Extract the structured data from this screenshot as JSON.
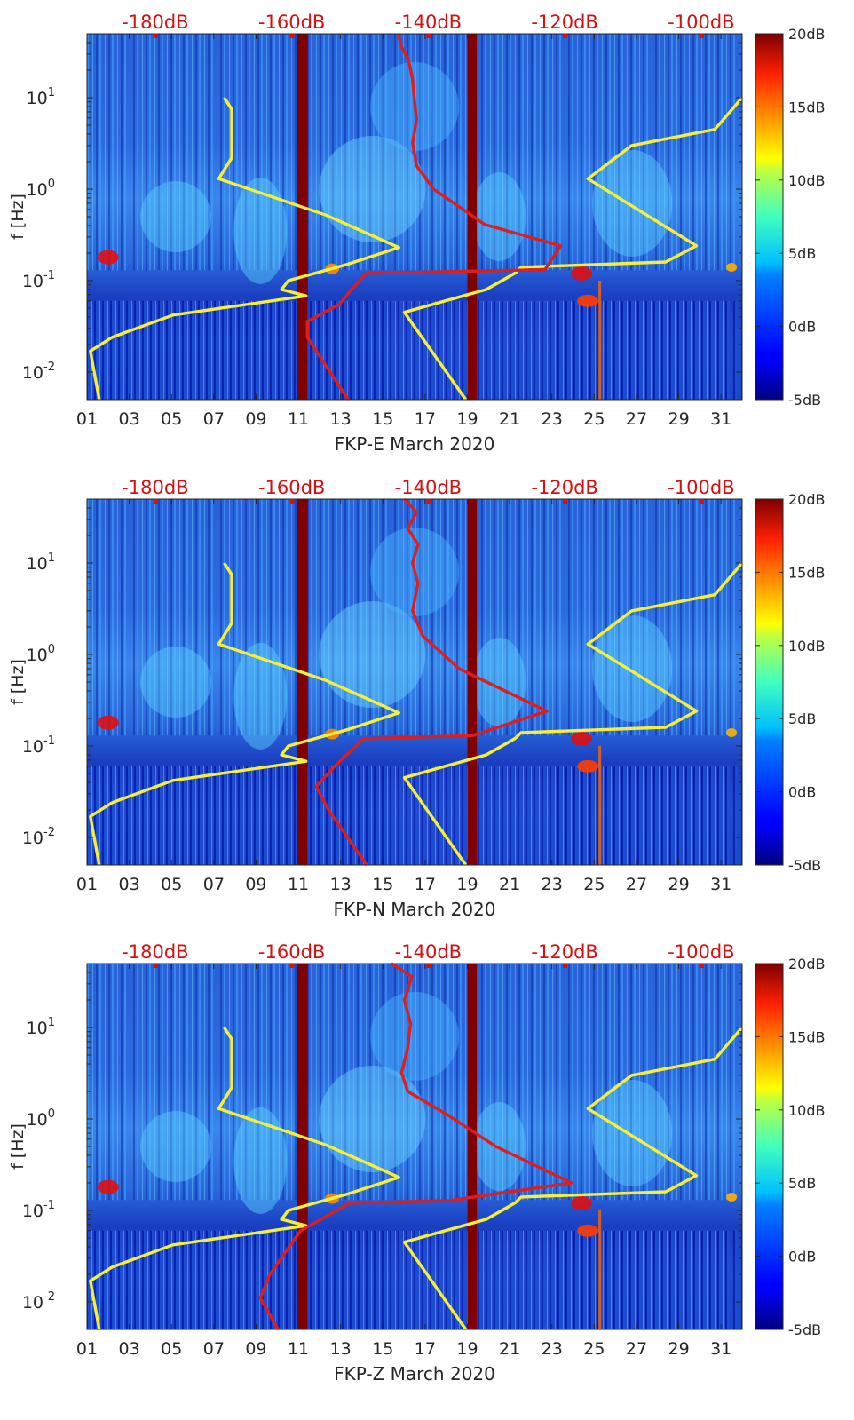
{
  "chart_data": [
    {
      "type": "heatmap",
      "xlabel": "FKP-E March 2020",
      "ylabel": "f [Hz]",
      "x_ticks": [
        "01",
        "03",
        "05",
        "07",
        "09",
        "11",
        "13",
        "15",
        "17",
        "19",
        "21",
        "23",
        "25",
        "27",
        "29",
        "31"
      ],
      "y_ticks": [
        {
          "base": "10",
          "exp": "-2"
        },
        {
          "base": "10",
          "exp": "-1"
        },
        {
          "base": "10",
          "exp": "0"
        },
        {
          "base": "10",
          "exp": "1"
        }
      ],
      "y_scale": "log",
      "ylim": [
        0.005,
        50
      ],
      "xlim": [
        1,
        32
      ],
      "top_axis_labels": [
        "-180dB",
        "-160dB",
        "-140dB",
        "-120dB",
        "-100dB"
      ],
      "top_axis_range_db": [
        -190,
        -94
      ],
      "colorbar": {
        "ticks": [
          "20dB",
          "15dB",
          "10dB",
          "5dB",
          "0dB",
          "-5dB"
        ],
        "range": [
          -5,
          20
        ],
        "colormap": "jet"
      },
      "series": [
        {
          "color": "#f5ef3a",
          "axis": "top",
          "points": [
            [
              -169.9,
              10
            ],
            [
              -168.8,
              7.5
            ],
            [
              -168.8,
              2.2
            ],
            [
              -170.7,
              1.3
            ],
            [
              -155,
              0.52
            ],
            [
              -144.3,
              0.23
            ],
            [
              -151.7,
              0.152
            ],
            [
              -160.5,
              0.1
            ],
            [
              -161.5,
              0.08
            ],
            [
              -157.9,
              0.068
            ],
            [
              -177.4,
              0.042
            ],
            [
              -186.3,
              0.024
            ],
            [
              -189.5,
              0.017
            ],
            [
              -188.2,
              0.005
            ]
          ]
        },
        {
          "color": "#f5ef3a",
          "axis": "top",
          "points": [
            [
              -94,
              10
            ],
            [
              -98,
              4.5
            ],
            [
              -110.2,
              3.0
            ],
            [
              -116.6,
              1.3
            ],
            [
              -100.7,
              0.24
            ],
            [
              -105.2,
              0.16
            ],
            [
              -126.4,
              0.14
            ],
            [
              -127.2,
              0.122
            ],
            [
              -128.5,
              0.107
            ],
            [
              -131.5,
              0.08
            ],
            [
              -136.5,
              0.063
            ],
            [
              -143.5,
              0.045
            ],
            [
              -134.5,
              0.005
            ]
          ]
        },
        {
          "color": "#dc1e1e",
          "axis": "top",
          "points": [
            [
              -144.4,
              50
            ],
            [
              -143.9,
              36
            ],
            [
              -142.9,
              26
            ],
            [
              -142.3,
              16
            ],
            [
              -142.0,
              9
            ],
            [
              -141.7,
              5.8
            ],
            [
              -142.3,
              3.2
            ],
            [
              -141.7,
              1.8
            ],
            [
              -139.2,
              1.0
            ],
            [
              -131.7,
              0.41
            ],
            [
              -120.6,
              0.24
            ],
            [
              -122.9,
              0.132
            ],
            [
              -149.1,
              0.12
            ],
            [
              -151.5,
              0.076
            ],
            [
              -153.0,
              0.055
            ],
            [
              -157.7,
              0.036
            ],
            [
              -157.7,
              0.024
            ],
            [
              -151.7,
              0.005
            ]
          ]
        }
      ]
    },
    {
      "type": "heatmap",
      "xlabel": "FKP-N March 2020",
      "ylabel": "f [Hz]",
      "x_ticks": [
        "01",
        "03",
        "05",
        "07",
        "09",
        "11",
        "13",
        "15",
        "17",
        "19",
        "21",
        "23",
        "25",
        "27",
        "29",
        "31"
      ],
      "y_ticks": [
        {
          "base": "10",
          "exp": "-2"
        },
        {
          "base": "10",
          "exp": "-1"
        },
        {
          "base": "10",
          "exp": "0"
        },
        {
          "base": "10",
          "exp": "1"
        }
      ],
      "y_scale": "log",
      "ylim": [
        0.005,
        50
      ],
      "xlim": [
        1,
        32
      ],
      "top_axis_labels": [
        "-180dB",
        "-160dB",
        "-140dB",
        "-120dB",
        "-100dB"
      ],
      "top_axis_range_db": [
        -190,
        -94
      ],
      "colorbar": {
        "ticks": [
          "20dB",
          "15dB",
          "10dB",
          "5dB",
          "0dB",
          "-5dB"
        ],
        "range": [
          -5,
          20
        ],
        "colormap": "jet"
      },
      "series": [
        {
          "color": "#f5ef3a",
          "axis": "top",
          "points": [
            [
              -169.9,
              10
            ],
            [
              -168.8,
              7.5
            ],
            [
              -168.8,
              2.2
            ],
            [
              -170.7,
              1.3
            ],
            [
              -155,
              0.52
            ],
            [
              -144.3,
              0.23
            ],
            [
              -151.7,
              0.152
            ],
            [
              -160.5,
              0.1
            ],
            [
              -161.5,
              0.08
            ],
            [
              -157.9,
              0.068
            ],
            [
              -177.4,
              0.042
            ],
            [
              -186.3,
              0.024
            ],
            [
              -189.5,
              0.017
            ],
            [
              -188.2,
              0.005
            ]
          ]
        },
        {
          "color": "#f5ef3a",
          "axis": "top",
          "points": [
            [
              -94,
              10
            ],
            [
              -98,
              4.5
            ],
            [
              -110.2,
              3.0
            ],
            [
              -116.6,
              1.3
            ],
            [
              -100.7,
              0.24
            ],
            [
              -105.2,
              0.16
            ],
            [
              -126.4,
              0.14
            ],
            [
              -127.2,
              0.122
            ],
            [
              -128.5,
              0.107
            ],
            [
              -131.5,
              0.08
            ],
            [
              -136.5,
              0.063
            ],
            [
              -143.5,
              0.045
            ],
            [
              -134.5,
              0.005
            ]
          ]
        },
        {
          "color": "#dc1e1e",
          "axis": "top",
          "points": [
            [
              -143.5,
              50
            ],
            [
              -141.7,
              36
            ],
            [
              -143.0,
              24
            ],
            [
              -141.5,
              16
            ],
            [
              -142.3,
              10
            ],
            [
              -141.5,
              6.0
            ],
            [
              -142.3,
              3.0
            ],
            [
              -140.8,
              1.6
            ],
            [
              -135.5,
              0.7
            ],
            [
              -122.6,
              0.24
            ],
            [
              -133.5,
              0.13
            ],
            [
              -149.5,
              0.12
            ],
            [
              -153.7,
              0.06
            ],
            [
              -156.4,
              0.036
            ],
            [
              -154.6,
              0.02
            ],
            [
              -149.0,
              0.005
            ]
          ]
        }
      ]
    },
    {
      "type": "heatmap",
      "xlabel": "FKP-Z March 2020",
      "ylabel": "f [Hz]",
      "x_ticks": [
        "01",
        "03",
        "05",
        "07",
        "09",
        "11",
        "13",
        "15",
        "17",
        "19",
        "21",
        "23",
        "25",
        "27",
        "29",
        "31"
      ],
      "y_ticks": [
        {
          "base": "10",
          "exp": "-2"
        },
        {
          "base": "10",
          "exp": "-1"
        },
        {
          "base": "10",
          "exp": "0"
        },
        {
          "base": "10",
          "exp": "1"
        }
      ],
      "y_scale": "log",
      "ylim": [
        0.005,
        50
      ],
      "xlim": [
        1,
        32
      ],
      "top_axis_labels": [
        "-180dB",
        "-160dB",
        "-140dB",
        "-120dB",
        "-100dB"
      ],
      "top_axis_range_db": [
        -190,
        -94
      ],
      "colorbar": {
        "ticks": [
          "20dB",
          "15dB",
          "10dB",
          "5dB",
          "0dB",
          "-5dB"
        ],
        "range": [
          -5,
          20
        ],
        "colormap": "jet"
      },
      "series": [
        {
          "color": "#f5ef3a",
          "axis": "top",
          "points": [
            [
              -169.9,
              10
            ],
            [
              -168.8,
              7.5
            ],
            [
              -168.8,
              2.2
            ],
            [
              -170.7,
              1.3
            ],
            [
              -155,
              0.52
            ],
            [
              -144.3,
              0.23
            ],
            [
              -151.7,
              0.152
            ],
            [
              -160.5,
              0.1
            ],
            [
              -161.5,
              0.08
            ],
            [
              -157.9,
              0.068
            ],
            [
              -177.4,
              0.042
            ],
            [
              -186.3,
              0.024
            ],
            [
              -189.5,
              0.017
            ],
            [
              -188.2,
              0.005
            ]
          ]
        },
        {
          "color": "#f5ef3a",
          "axis": "top",
          "points": [
            [
              -94,
              10
            ],
            [
              -98,
              4.5
            ],
            [
              -110.2,
              3.0
            ],
            [
              -116.6,
              1.3
            ],
            [
              -100.7,
              0.24
            ],
            [
              -105.2,
              0.16
            ],
            [
              -126.4,
              0.14
            ],
            [
              -127.2,
              0.122
            ],
            [
              -128.5,
              0.107
            ],
            [
              -131.5,
              0.08
            ],
            [
              -136.5,
              0.063
            ],
            [
              -143.5,
              0.045
            ],
            [
              -134.5,
              0.005
            ]
          ]
        },
        {
          "color": "#dc1e1e",
          "axis": "top",
          "points": [
            [
              -145.4,
              50
            ],
            [
              -142.4,
              36
            ],
            [
              -143.5,
              20
            ],
            [
              -142.6,
              11
            ],
            [
              -143.0,
              6.0
            ],
            [
              -143.9,
              3.2
            ],
            [
              -143.0,
              2.0
            ],
            [
              -137.1,
              1.1
            ],
            [
              -130.1,
              0.5
            ],
            [
              -119.0,
              0.2
            ],
            [
              -137.0,
              0.128
            ],
            [
              -151.5,
              0.12
            ],
            [
              -158.7,
              0.06
            ],
            [
              -163.2,
              0.02
            ],
            [
              -164.6,
              0.011
            ],
            [
              -162.0,
              0.005
            ]
          ]
        }
      ]
    }
  ]
}
